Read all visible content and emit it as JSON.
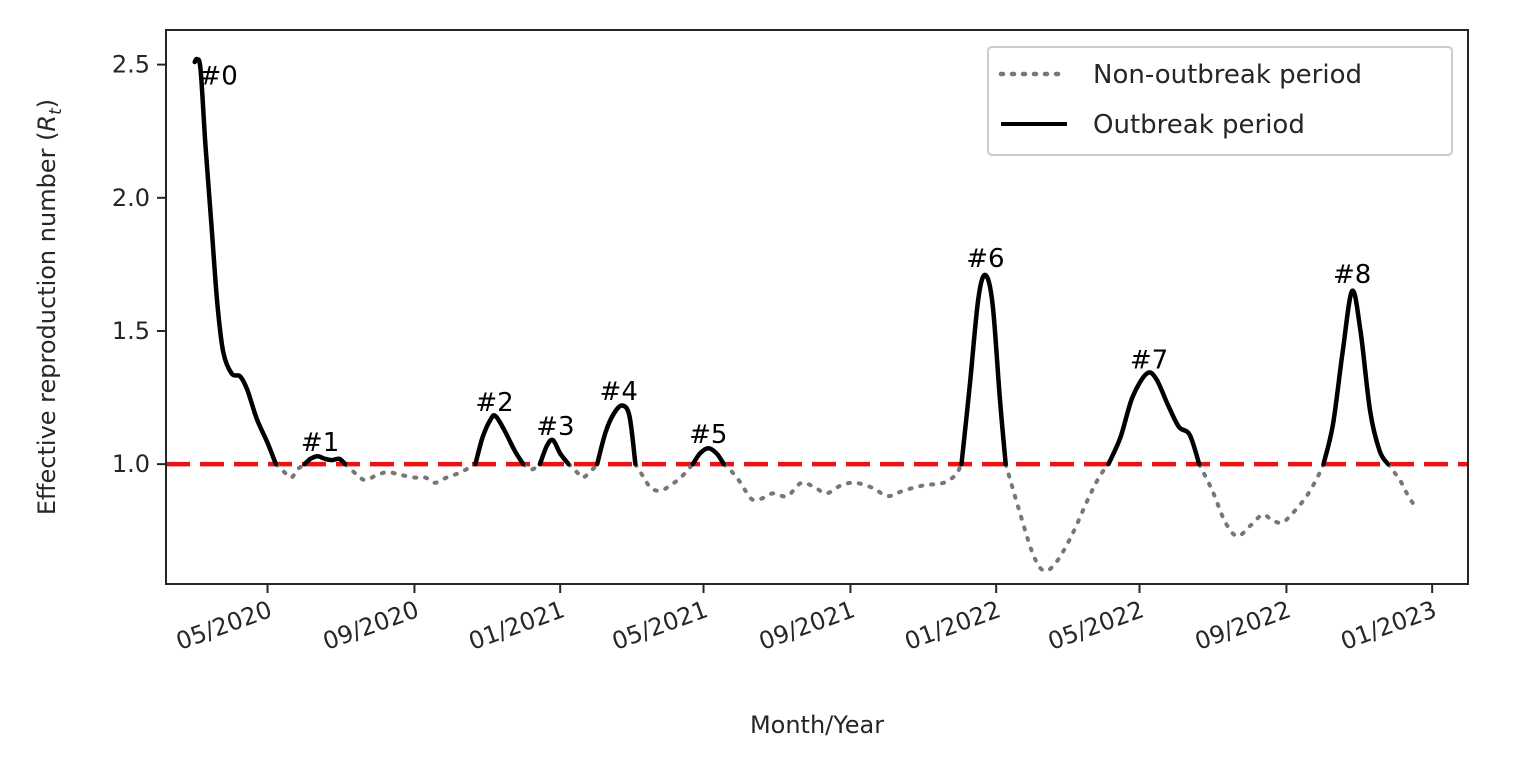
{
  "chart_data": {
    "type": "line",
    "title": "",
    "xlabel": "Month/Year",
    "ylabel_main": "Effective reproduction number (",
    "ylabel_symbol": "R",
    "ylabel_sub": "t",
    "ylabel_close": ")",
    "xlim": [
      "2020-02-06",
      "2023-01-31"
    ],
    "ylim": [
      0.55,
      2.63
    ],
    "x_ticks": [
      {
        "date": "2020-05-01",
        "label": "05/2020"
      },
      {
        "date": "2020-09-01",
        "label": "09/2020"
      },
      {
        "date": "2021-01-01",
        "label": "01/2021"
      },
      {
        "date": "2021-05-01",
        "label": "05/2021"
      },
      {
        "date": "2021-09-01",
        "label": "09/2021"
      },
      {
        "date": "2022-01-01",
        "label": "01/2022"
      },
      {
        "date": "2022-05-01",
        "label": "05/2022"
      },
      {
        "date": "2022-09-01",
        "label": "09/2022"
      },
      {
        "date": "2023-01-01",
        "label": "01/2023"
      }
    ],
    "y_ticks": [
      1.0,
      1.5,
      2.0,
      2.5
    ],
    "y_tick_labels": [
      "1.0",
      "1.5",
      "2.0",
      "2.5"
    ],
    "threshold": {
      "value": 1.0,
      "color": "#ee1111"
    },
    "legend": {
      "position": "top-right",
      "entries": [
        {
          "label": "Non-outbreak period",
          "style": "dotted",
          "color": "#777777"
        },
        {
          "label": "Outbreak period",
          "style": "solid",
          "color": "#000000"
        }
      ]
    },
    "series": [
      {
        "name": "Non-outbreak period",
        "style": "dotted",
        "color": "#777777",
        "segments": [
          [
            [
              "2020-05-08",
              1.0
            ],
            [
              "2020-05-15",
              0.97
            ],
            [
              "2020-05-21",
              0.95
            ],
            [
              "2020-05-26",
              0.98
            ],
            [
              "2020-06-01",
              1.0
            ]
          ],
          [
            [
              "2020-07-05",
              1.0
            ],
            [
              "2020-07-15",
              0.96
            ],
            [
              "2020-07-22",
              0.94
            ],
            [
              "2020-08-01",
              0.96
            ],
            [
              "2020-08-10",
              0.97
            ],
            [
              "2020-08-20",
              0.96
            ],
            [
              "2020-09-01",
              0.95
            ],
            [
              "2020-09-10",
              0.95
            ],
            [
              "2020-09-18",
              0.93
            ],
            [
              "2020-09-28",
              0.95
            ],
            [
              "2020-10-10",
              0.97
            ],
            [
              "2020-10-22",
              1.0
            ]
          ],
          [
            [
              "2020-12-01",
              1.0
            ],
            [
              "2020-12-08",
              0.98
            ],
            [
              "2020-12-15",
              1.0
            ]
          ],
          [
            [
              "2021-01-08",
              1.0
            ],
            [
              "2021-01-15",
              0.97
            ],
            [
              "2021-01-20",
              0.95
            ],
            [
              "2021-01-28",
              0.98
            ],
            [
              "2021-02-01",
              1.0
            ]
          ],
          [
            [
              "2021-03-05",
              1.0
            ],
            [
              "2021-03-12",
              0.95
            ],
            [
              "2021-03-18",
              0.91
            ],
            [
              "2021-03-26",
              0.9
            ],
            [
              "2021-04-03",
              0.92
            ],
            [
              "2021-04-12",
              0.95
            ],
            [
              "2021-04-22",
              1.0
            ]
          ],
          [
            [
              "2021-05-18",
              1.0
            ],
            [
              "2021-05-25",
              0.97
            ],
            [
              "2021-06-01",
              0.93
            ],
            [
              "2021-06-10",
              0.87
            ],
            [
              "2021-06-18",
              0.87
            ],
            [
              "2021-06-28",
              0.89
            ],
            [
              "2021-07-10",
              0.88
            ],
            [
              "2021-07-22",
              0.93
            ],
            [
              "2021-08-03",
              0.91
            ],
            [
              "2021-08-12",
              0.89
            ],
            [
              "2021-08-24",
              0.92
            ],
            [
              "2021-09-05",
              0.93
            ],
            [
              "2021-09-20",
              0.91
            ],
            [
              "2021-10-02",
              0.88
            ],
            [
              "2021-10-15",
              0.9
            ],
            [
              "2021-11-01",
              0.92
            ],
            [
              "2021-11-18",
              0.93
            ],
            [
              "2021-11-28",
              0.96
            ],
            [
              "2021-12-03",
              1.0
            ]
          ],
          [
            [
              "2022-01-09",
              1.0
            ],
            [
              "2022-01-20",
              0.83
            ],
            [
              "2022-02-01",
              0.66
            ],
            [
              "2022-02-10",
              0.6
            ],
            [
              "2022-02-20",
              0.63
            ],
            [
              "2022-03-05",
              0.73
            ],
            [
              "2022-03-18",
              0.86
            ],
            [
              "2022-03-28",
              0.95
            ],
            [
              "2022-04-05",
              1.0
            ]
          ],
          [
            [
              "2022-06-20",
              1.0
            ],
            [
              "2022-07-01",
              0.9
            ],
            [
              "2022-07-12",
              0.78
            ],
            [
              "2022-07-22",
              0.73
            ],
            [
              "2022-08-02",
              0.77
            ],
            [
              "2022-08-12",
              0.81
            ],
            [
              "2022-08-20",
              0.79
            ],
            [
              "2022-08-28",
              0.78
            ],
            [
              "2022-09-05",
              0.81
            ],
            [
              "2022-09-18",
              0.88
            ],
            [
              "2022-09-28",
              0.96
            ],
            [
              "2022-10-02",
              1.0
            ]
          ],
          [
            [
              "2022-11-25",
              1.0
            ],
            [
              "2022-12-05",
              0.94
            ],
            [
              "2022-12-12",
              0.88
            ],
            [
              "2022-12-18",
              0.84
            ]
          ]
        ]
      },
      {
        "name": "Outbreak period",
        "style": "solid",
        "color": "#000000",
        "segments": [
          [
            [
              "2020-03-01",
              2.51
            ],
            [
              "2020-03-03",
              2.52
            ],
            [
              "2020-03-06",
              2.48
            ],
            [
              "2020-03-10",
              2.2
            ],
            [
              "2020-03-15",
              1.9
            ],
            [
              "2020-03-20",
              1.6
            ],
            [
              "2020-03-25",
              1.42
            ],
            [
              "2020-04-01",
              1.34
            ],
            [
              "2020-04-08",
              1.33
            ],
            [
              "2020-04-14",
              1.28
            ],
            [
              "2020-04-22",
              1.17
            ],
            [
              "2020-05-01",
              1.08
            ],
            [
              "2020-05-08",
              1.0
            ]
          ],
          [
            [
              "2020-06-01",
              1.0
            ],
            [
              "2020-06-06",
              1.02
            ],
            [
              "2020-06-12",
              1.03
            ],
            [
              "2020-06-18",
              1.02
            ],
            [
              "2020-06-24",
              1.015
            ],
            [
              "2020-06-30",
              1.02
            ],
            [
              "2020-07-05",
              1.0
            ]
          ],
          [
            [
              "2020-10-22",
              1.0
            ],
            [
              "2020-10-28",
              1.1
            ],
            [
              "2020-11-04",
              1.17
            ],
            [
              "2020-11-08",
              1.18
            ],
            [
              "2020-11-15",
              1.13
            ],
            [
              "2020-11-24",
              1.05
            ],
            [
              "2020-12-01",
              1.0
            ]
          ],
          [
            [
              "2020-12-15",
              1.0
            ],
            [
              "2020-12-21",
              1.07
            ],
            [
              "2020-12-26",
              1.09
            ],
            [
              "2021-01-01",
              1.04
            ],
            [
              "2021-01-08",
              1.0
            ]
          ],
          [
            [
              "2021-02-01",
              1.0
            ],
            [
              "2021-02-08",
              1.12
            ],
            [
              "2021-02-15",
              1.19
            ],
            [
              "2021-02-22",
              1.22
            ],
            [
              "2021-02-28",
              1.18
            ],
            [
              "2021-03-05",
              1.0
            ]
          ],
          [
            [
              "2021-04-22",
              1.0
            ],
            [
              "2021-04-28",
              1.04
            ],
            [
              "2021-05-05",
              1.06
            ],
            [
              "2021-05-12",
              1.04
            ],
            [
              "2021-05-18",
              1.0
            ]
          ],
          [
            [
              "2021-12-03",
              1.0
            ],
            [
              "2021-12-10",
              1.3
            ],
            [
              "2021-12-17",
              1.62
            ],
            [
              "2021-12-23",
              1.71
            ],
            [
              "2021-12-29",
              1.6
            ],
            [
              "2022-01-04",
              1.25
            ],
            [
              "2022-01-09",
              1.0
            ]
          ],
          [
            [
              "2022-04-05",
              1.0
            ],
            [
              "2022-04-15",
              1.1
            ],
            [
              "2022-04-25",
              1.25
            ],
            [
              "2022-05-07",
              1.34
            ],
            [
              "2022-05-15",
              1.32
            ],
            [
              "2022-05-25",
              1.22
            ],
            [
              "2022-06-03",
              1.14
            ],
            [
              "2022-06-12",
              1.11
            ],
            [
              "2022-06-20",
              1.0
            ]
          ],
          [
            [
              "2022-10-02",
              1.0
            ],
            [
              "2022-10-10",
              1.15
            ],
            [
              "2022-10-18",
              1.42
            ],
            [
              "2022-10-26",
              1.65
            ],
            [
              "2022-11-02",
              1.5
            ],
            [
              "2022-11-10",
              1.2
            ],
            [
              "2022-11-18",
              1.05
            ],
            [
              "2022-11-25",
              1.0
            ]
          ]
        ]
      }
    ],
    "annotations": [
      {
        "text": "#0",
        "x": "2020-03-05",
        "y": 2.5
      },
      {
        "text": "#1",
        "x": "2020-06-14",
        "y": 1.05
      },
      {
        "text": "#2",
        "x": "2020-11-07",
        "y": 1.2
      },
      {
        "text": "#3",
        "x": "2020-12-28",
        "y": 1.11
      },
      {
        "text": "#4",
        "x": "2021-02-19",
        "y": 1.24
      },
      {
        "text": "#5",
        "x": "2021-05-05",
        "y": 1.08
      },
      {
        "text": "#6",
        "x": "2021-12-23",
        "y": 1.74
      },
      {
        "text": "#7",
        "x": "2022-05-09",
        "y": 1.36
      },
      {
        "text": "#8",
        "x": "2022-10-26",
        "y": 1.68
      }
    ]
  }
}
